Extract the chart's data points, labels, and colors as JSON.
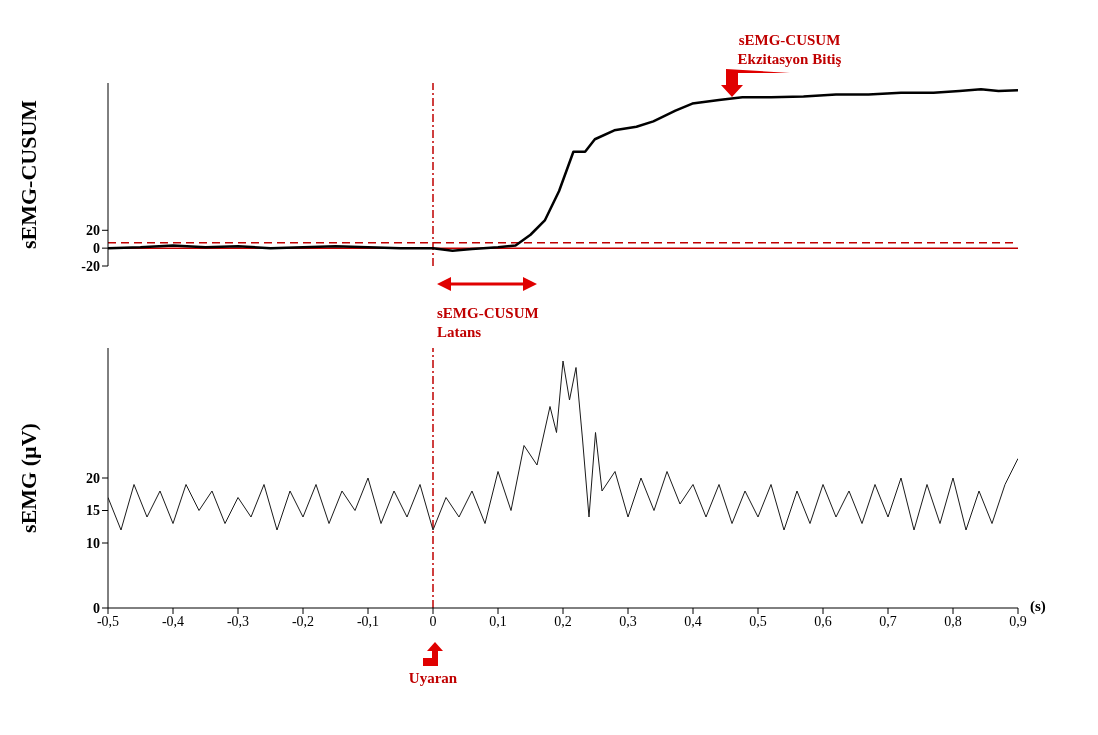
{
  "chart_data": [
    {
      "type": "line",
      "ylabel": "sEMG-CUSUM",
      "xlim": [
        -0.5,
        0.9
      ],
      "ylim": [
        -20,
        185
      ],
      "yticks": [
        -20,
        0,
        20
      ],
      "tick_labels": "y",
      "series": [
        {
          "color": "#000000",
          "x": [
            -0.5,
            -0.45,
            -0.4,
            -0.35,
            -0.3,
            -0.25,
            -0.2,
            -0.15,
            -0.1,
            -0.05,
            0,
            0.03,
            0.06,
            0.1,
            0.127,
            0.15,
            0.172,
            0.194,
            0.216,
            0.234,
            0.249,
            0.279,
            0.313,
            0.339,
            0.373,
            0.399,
            0.44,
            0.476,
            0.52,
            0.57,
            0.62,
            0.67,
            0.72,
            0.77,
            0.81,
            0.843,
            0.87,
            0.9
          ],
          "values": [
            0,
            1,
            3,
            1,
            2,
            0,
            1,
            2,
            1,
            0,
            0,
            -3,
            -1,
            1,
            3,
            15,
            31,
            64,
            108,
            108,
            122,
            132,
            136,
            142,
            154,
            162,
            166,
            169,
            169,
            170,
            172,
            172,
            174,
            174,
            176,
            178,
            176,
            177
          ]
        }
      ],
      "ref_lines": [
        {
          "axis": "y",
          "value": 0,
          "color": "#c00000",
          "line_style": "solid"
        },
        {
          "axis": "y",
          "value": 6,
          "color": "#c00000",
          "line_style": "dashed"
        },
        {
          "axis": "x",
          "value": 0,
          "color": "#c00000",
          "line_style": "dashdot"
        }
      ],
      "annotations": [
        {
          "text": "sEMG-CUSUM Ekzitasyon Bitiş",
          "x": 0.46,
          "y": 169
        },
        "sEMG-CUSUM Latans"
      ]
    },
    {
      "type": "line",
      "ylabel": "sEMG (µV)",
      "xlabel": "(s)",
      "xlim": [
        -0.5,
        0.9
      ],
      "ylim": [
        0,
        40
      ],
      "yticks": [
        0,
        10,
        15,
        20
      ],
      "xticks": [
        {
          "value": -0.5,
          "label": "-0,5"
        },
        {
          "value": -0.4,
          "label": "-0,4"
        },
        {
          "value": -0.3,
          "label": "-0,3"
        },
        {
          "value": -0.2,
          "label": "-0,2"
        },
        {
          "value": -0.1,
          "label": "-0,1"
        },
        0,
        {
          "value": 0.1,
          "label": "0,1"
        },
        {
          "value": 0.2,
          "label": "0,2"
        },
        {
          "value": 0.3,
          "label": "0,3"
        },
        {
          "value": 0.4,
          "label": "0,4"
        },
        {
          "value": 0.5,
          "label": "0,5"
        },
        {
          "value": 0.6,
          "label": "0,6"
        },
        {
          "value": 0.7,
          "label": "0,7"
        },
        {
          "value": 0.8,
          "label": "0,8"
        },
        {
          "value": 0.9,
          "label": "0,9"
        }
      ],
      "series": [
        {
          "color": "#1a1a1a",
          "x": [
            -0.5,
            -0.48,
            -0.46,
            -0.44,
            -0.42,
            -0.4,
            -0.38,
            -0.36,
            -0.34,
            -0.32,
            -0.3,
            -0.28,
            -0.26,
            -0.24,
            -0.22,
            -0.2,
            -0.18,
            -0.16,
            -0.14,
            -0.12,
            -0.1,
            -0.08,
            -0.06,
            -0.04,
            -0.02,
            0,
            0.02,
            0.04,
            0.06,
            0.08,
            0.1,
            0.12,
            0.14,
            0.16,
            0.18,
            0.19,
            0.2,
            0.21,
            0.22,
            0.23,
            0.24,
            0.25,
            0.26,
            0.28,
            0.3,
            0.32,
            0.34,
            0.36,
            0.38,
            0.4,
            0.42,
            0.44,
            0.46,
            0.48,
            0.5,
            0.52,
            0.54,
            0.56,
            0.58,
            0.6,
            0.62,
            0.64,
            0.66,
            0.68,
            0.7,
            0.72,
            0.74,
            0.76,
            0.78,
            0.8,
            0.82,
            0.84,
            0.86,
            0.88,
            0.9
          ],
          "values": [
            17,
            12,
            19,
            14,
            18,
            13,
            19,
            15,
            18,
            13,
            17,
            14,
            19,
            12,
            18,
            14,
            19,
            13,
            18,
            15,
            20,
            13,
            18,
            14,
            19,
            12,
            17,
            14,
            18,
            13,
            21,
            15,
            25,
            22,
            31,
            27,
            38,
            32,
            37,
            26,
            14,
            27,
            18,
            21,
            14,
            20,
            15,
            21,
            16,
            19,
            14,
            19,
            13,
            18,
            14,
            19,
            12,
            18,
            13,
            19,
            14,
            18,
            13,
            19,
            14,
            20,
            12,
            19,
            13,
            20,
            12,
            18,
            13,
            19,
            23
          ]
        }
      ],
      "ref_lines": [
        {
          "axis": "x",
          "value": 0,
          "color": "#c00000",
          "line_style": "dashdot",
          "label": "Uyaran"
        }
      ]
    }
  ]
}
